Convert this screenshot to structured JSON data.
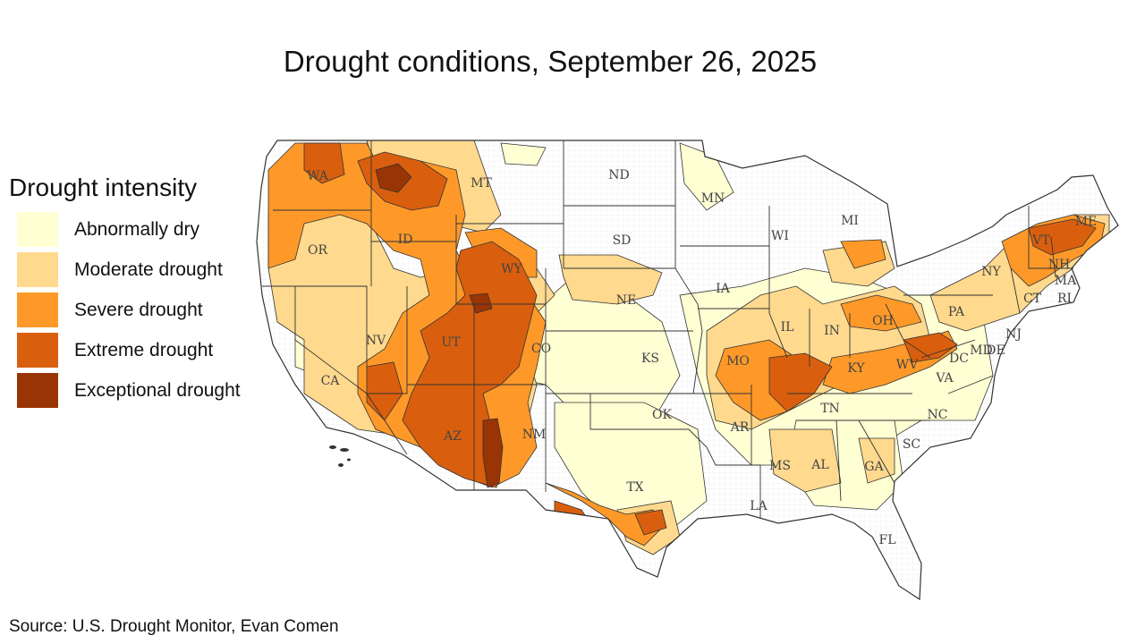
{
  "title": "Drought conditions, September 26, 2025",
  "legend": {
    "title": "Drought intensity",
    "items": [
      {
        "label": "Abnormally dry",
        "color": "#ffffd4"
      },
      {
        "label": "Moderate drought",
        "color": "#fed98e"
      },
      {
        "label": "Severe drought",
        "color": "#fe9929"
      },
      {
        "label": "Extreme drought",
        "color": "#d95f0e"
      },
      {
        "label": "Exceptional drought",
        "color": "#993404"
      }
    ]
  },
  "state_labels": [
    "WA",
    "OR",
    "CA",
    "NV",
    "ID",
    "MT",
    "WY",
    "UT",
    "AZ",
    "CO",
    "NM",
    "ND",
    "SD",
    "NE",
    "KS",
    "OK",
    "TX",
    "MN",
    "IA",
    "MO",
    "AR",
    "LA",
    "WI",
    "IL",
    "MI",
    "IN",
    "OH",
    "KY",
    "TN",
    "MS",
    "AL",
    "GA",
    "FL",
    "SC",
    "NC",
    "VA",
    "WV",
    "PA",
    "NY",
    "VT",
    "NH",
    "ME",
    "MA",
    "CT",
    "RI",
    "NJ",
    "DE",
    "MD",
    "DC"
  ],
  "source": "Source: U.S. Drought Monitor, Evan Comen"
}
